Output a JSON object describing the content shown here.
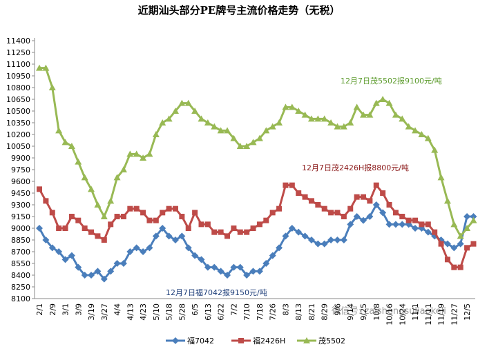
{
  "chart_data": {
    "type": "line",
    "title": "近期汕头部分PE牌号主流价格走势（无税）",
    "categories": [
      "2/1",
      null,
      "2/9",
      null,
      "3/1",
      null,
      "3/9",
      null,
      "3/19",
      null,
      "3/27",
      null,
      "4/4",
      null,
      "4/13",
      null,
      "4/23",
      null,
      "5/10",
      null,
      "5/18",
      null,
      "5/28",
      null,
      "6/5",
      null,
      "6/13",
      null,
      "6/22",
      null,
      "7/2",
      null,
      "7/10",
      null,
      "7/18",
      null,
      "7/26",
      null,
      "8/3",
      null,
      "8/13",
      null,
      "8/21",
      null,
      "8/29",
      null,
      "9/6",
      null,
      "9/14",
      null,
      "9/25",
      null,
      "10/8",
      null,
      "10/16",
      null,
      "10/24",
      null,
      "11/1",
      null,
      "11/11",
      null,
      "11/19",
      null,
      "11/27",
      null,
      "12/5",
      null
    ],
    "series": [
      {
        "name": "福7042",
        "color": "#4a7ebb",
        "marker": "diamond",
        "values": [
          9000,
          8850,
          8750,
          8700,
          8600,
          8650,
          8500,
          8400,
          8400,
          8450,
          8350,
          8450,
          8550,
          8550,
          8700,
          8750,
          8700,
          8750,
          8900,
          9000,
          8900,
          8850,
          8900,
          8750,
          8650,
          8600,
          8500,
          8500,
          8450,
          8400,
          8500,
          8500,
          8400,
          8450,
          8450,
          8550,
          8650,
          8750,
          8900,
          9000,
          8950,
          8900,
          8850,
          8800,
          8800,
          8850,
          8850,
          8850,
          9050,
          9150,
          9100,
          9150,
          9300,
          9200,
          9050,
          9050,
          9050,
          9050,
          9000,
          9000,
          8950,
          8900,
          8850,
          8800,
          8750,
          8800,
          9150,
          9150
        ]
      },
      {
        "name": "福2426H",
        "color": "#be4b48",
        "marker": "square",
        "values": [
          9500,
          9350,
          9200,
          9000,
          9000,
          9150,
          9100,
          9000,
          8950,
          8900,
          8850,
          9050,
          9150,
          9150,
          9250,
          9250,
          9200,
          9100,
          9100,
          9200,
          9250,
          9250,
          9150,
          9000,
          9200,
          9050,
          9050,
          8950,
          8950,
          8900,
          9000,
          8950,
          8950,
          9000,
          9050,
          9100,
          9200,
          9250,
          9550,
          9550,
          9450,
          9400,
          9350,
          9300,
          9250,
          9200,
          9200,
          9150,
          9250,
          9400,
          9400,
          9350,
          9550,
          9450,
          9300,
          9200,
          9150,
          9100,
          9100,
          9050,
          9050,
          8950,
          8800,
          8600,
          8500,
          8500,
          8750,
          8800
        ]
      },
      {
        "name": "茂5502",
        "color": "#98b954",
        "marker": "triangle",
        "values": [
          11050,
          11050,
          10800,
          10250,
          10100,
          10050,
          9850,
          9650,
          9500,
          9300,
          9150,
          9350,
          9650,
          9750,
          9950,
          9950,
          9900,
          9950,
          10200,
          10350,
          10400,
          10500,
          10600,
          10600,
          10500,
          10400,
          10350,
          10300,
          10250,
          10250,
          10150,
          10050,
          10050,
          10100,
          10150,
          10250,
          10300,
          10350,
          10550,
          10550,
          10500,
          10450,
          10400,
          10400,
          10400,
          10350,
          10300,
          10300,
          10350,
          10550,
          10450,
          10450,
          10600,
          10650,
          10600,
          10450,
          10400,
          10300,
          10250,
          10200,
          10150,
          10000,
          9650,
          9350,
          9050,
          8900,
          9000,
          9100
        ]
      }
    ],
    "annotations": [
      "12月7日茂5502报9100元/吨",
      "12月7日茂2426H报8800元/吨",
      "12月7日福7042报9150元/吨"
    ],
    "watermark": "微信号: zaishengsuliaokeli",
    "ylim": [
      8100,
      11400
    ],
    "yticks": [
      8100,
      8250,
      8400,
      8550,
      8700,
      8850,
      9000,
      9150,
      9300,
      9450,
      9600,
      9750,
      9900,
      10050,
      10200,
      10350,
      10500,
      10650,
      10800,
      10950,
      11100,
      11250,
      11400
    ],
    "grid": false,
    "legend": "bottom"
  }
}
